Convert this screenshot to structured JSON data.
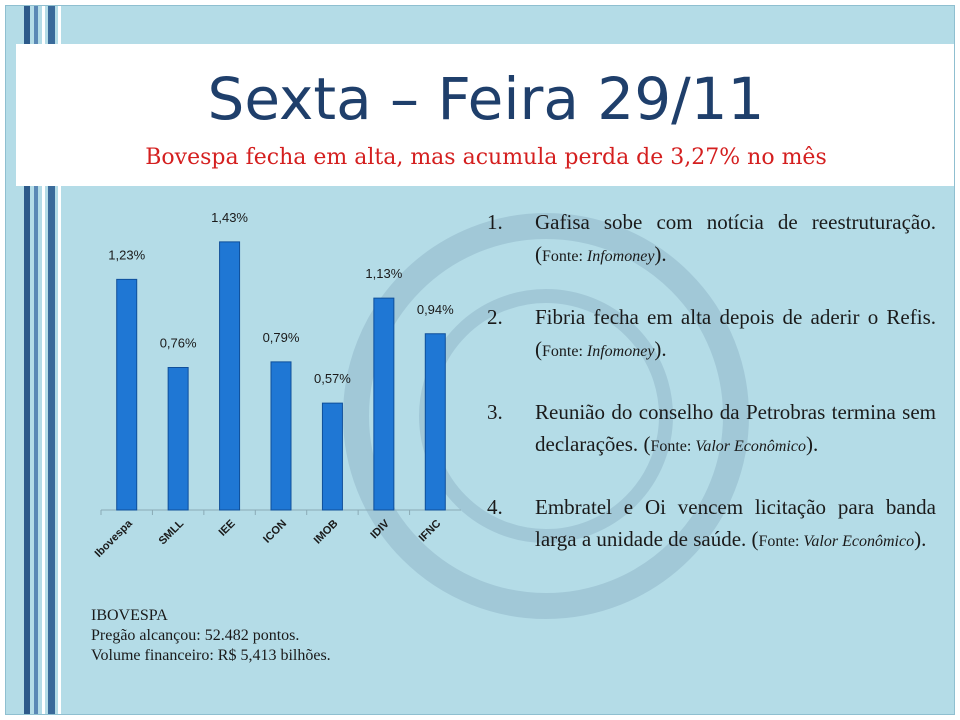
{
  "slide": {
    "title": "Sexta – Feira 29/11",
    "subtitle": "Bovespa fecha em alta, mas acumula perda de 3,27% no mês"
  },
  "chart_data": {
    "type": "bar",
    "categories": [
      "Ibovespa",
      "SMLL",
      "IEE",
      "ICON",
      "IMOB",
      "IDIV",
      "IFNC"
    ],
    "values": [
      1.23,
      0.76,
      1.43,
      0.79,
      0.57,
      1.13,
      0.94
    ],
    "data_labels": [
      "1,23%",
      "0,76%",
      "1,43%",
      "0,79%",
      "0,57%",
      "1,13%",
      "0,94%"
    ],
    "ylim": [
      0,
      1.6
    ],
    "grid": false,
    "legend": "none",
    "bar_color": "#1f77d4"
  },
  "news": [
    {
      "num": "1.",
      "text": "Gafisa sobe com notícia de reestruturação.",
      "open": "(",
      "fonte": "Fonte: ",
      "source": "Infomoney",
      "close": ")."
    },
    {
      "num": "2.",
      "text": "Fibria fecha em alta depois de aderir o Refis.",
      "open": "(",
      "fonte": "Fonte: ",
      "source": "Infomoney",
      "close": ")."
    },
    {
      "num": "3.",
      "text": "Reunião do conselho da Petrobras termina sem declarações.",
      "open": "(",
      "fonte": "Fonte: ",
      "source": "Valor Econômico",
      "close": ")."
    },
    {
      "num": "4.",
      "text": "Embratel e Oi vencem licitação para banda larga a unidade de saúde.",
      "open": "(",
      "fonte": "Fonte: ",
      "source": "Valor Econômico",
      "close": ")."
    }
  ],
  "info": {
    "heading": "IBOVESPA",
    "line1": "Pregão alcançou: 52.482 pontos.",
    "line2": "Volume financeiro:  R$ 5,413 bilhões."
  },
  "colors": {
    "title": "#1f3f6b",
    "subtitle": "#d41f1f",
    "background": "#b4dce7"
  }
}
